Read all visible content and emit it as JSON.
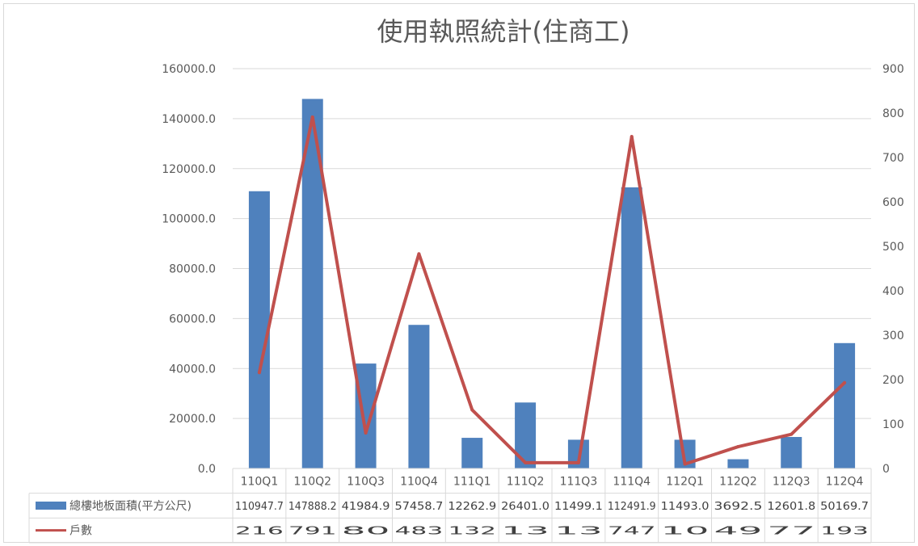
{
  "chart_data": {
    "type": "bar",
    "title": "使用執照統計(住商工)",
    "categories": [
      "110Q1",
      "110Q2",
      "110Q3",
      "110Q4",
      "111Q1",
      "111Q2",
      "111Q3",
      "111Q4",
      "112Q1",
      "112Q2",
      "112Q3",
      "112Q4"
    ],
    "series": [
      {
        "name": "總樓地板面積(平方公尺)",
        "type": "bar",
        "axis": "left",
        "color": "#4F81BD",
        "values": [
          110947.7,
          147888.2,
          41984.9,
          57458.7,
          12262.9,
          26401.0,
          11499.1,
          112491.9,
          11493.0,
          3692.5,
          12601.8,
          50169.7
        ],
        "labels": [
          "110947.7",
          "147888.2",
          "41984.9",
          "57458.7",
          "12262.9",
          "26401.0",
          "11499.1",
          "112491.9",
          "11493.0",
          "3692.5",
          "12601.8",
          "50169.7"
        ]
      },
      {
        "name": "戶數",
        "type": "line",
        "axis": "right",
        "color": "#C0504D",
        "values": [
          216,
          791,
          80,
          483,
          132,
          13,
          13,
          747,
          10,
          49,
          77,
          193
        ],
        "labels": [
          "216",
          "791",
          "80",
          "483",
          "132",
          "13",
          "13",
          "747",
          "10",
          "49",
          "77",
          "193"
        ]
      }
    ],
    "y_left": {
      "ylim": [
        0,
        160000
      ],
      "ticks": [
        "0.0",
        "20000.0",
        "40000.0",
        "60000.0",
        "80000.0",
        "100000.0",
        "120000.0",
        "140000.0",
        "160000.0"
      ]
    },
    "y_right": {
      "ylim": [
        0,
        900
      ],
      "ticks": [
        "0",
        "100",
        "200",
        "300",
        "400",
        "500",
        "600",
        "700",
        "800",
        "900"
      ]
    },
    "grid": true,
    "legend": "data-table"
  }
}
